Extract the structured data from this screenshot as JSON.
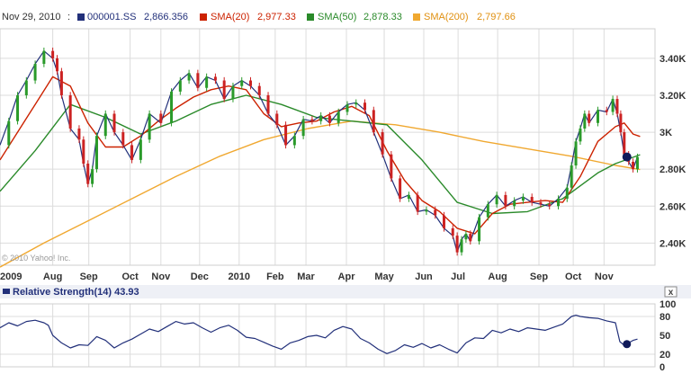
{
  "legend": {
    "date": "Nov 29, 2010",
    "items": [
      {
        "name": "000001.SS",
        "value": "2,866.356",
        "color": "#22307a"
      },
      {
        "name": "SMA(20)",
        "value": "2,977.33",
        "color": "#cc2200"
      },
      {
        "name": "SMA(50)",
        "value": "2,878.33",
        "color": "#2a8a2a"
      },
      {
        "name": "SMA(200)",
        "value": "2,797.66",
        "color": "#f0a830"
      }
    ]
  },
  "watermark": "© 2010 Yahoo! Inc.",
  "rsi_title": "Relative Strength(14) 43.93",
  "close_glyph": "x",
  "chart_data": [
    {
      "type": "line",
      "title": "000001.SS",
      "yticks": [
        2400,
        2600,
        2800,
        3000,
        3200,
        3400
      ],
      "ytick_labels": [
        "2.40K",
        "2.60K",
        "2.80K",
        "3K",
        "3.20K",
        "3.40K"
      ],
      "ylim": [
        2280,
        3560
      ],
      "xlim": [
        0,
        745
      ],
      "month_positions": [
        0,
        60,
        101,
        148,
        183,
        227,
        272,
        313,
        348,
        394,
        437,
        482,
        521,
        566,
        613,
        652,
        687
      ],
      "month_labels": [
        "2009",
        "Aug",
        "Sep",
        "Oct",
        "Nov",
        "Dec",
        "2010",
        "Feb",
        "Mar",
        "Apr",
        "May",
        "Jun",
        "Jul",
        "Aug",
        "Sep",
        "Oct",
        "Nov"
      ],
      "series": [
        {
          "name": "000001.SS",
          "color": "#22307a",
          "x": [
            0,
            10,
            20,
            30,
            40,
            50,
            60,
            65,
            70,
            80,
            90,
            95,
            100,
            105,
            110,
            120,
            130,
            140,
            150,
            160,
            170,
            183,
            195,
            205,
            215,
            225,
            235,
            245,
            255,
            265,
            275,
            285,
            295,
            305,
            315,
            325,
            335,
            345,
            355,
            365,
            375,
            385,
            395,
            405,
            415,
            425,
            435,
            445,
            455,
            465,
            475,
            485,
            495,
            505,
            515,
            520,
            525,
            530,
            535,
            545,
            555,
            565,
            575,
            585,
            595,
            605,
            615,
            625,
            635,
            645,
            650,
            655,
            660,
            665,
            670,
            680,
            690,
            697,
            702,
            706,
            710,
            715,
            720,
            725
          ],
          "values": [
            2930,
            3060,
            3200,
            3280,
            3370,
            3440,
            3400,
            3330,
            3200,
            3020,
            2960,
            2830,
            2720,
            2800,
            2980,
            3100,
            3000,
            2930,
            2850,
            2960,
            3100,
            3050,
            3220,
            3280,
            3320,
            3240,
            3300,
            3280,
            3180,
            3250,
            3280,
            3250,
            3200,
            3100,
            3040,
            2930,
            2980,
            3070,
            3060,
            3090,
            3050,
            3110,
            3150,
            3160,
            3120,
            3000,
            2880,
            2750,
            2640,
            2660,
            2570,
            2580,
            2550,
            2480,
            2440,
            2350,
            2420,
            2450,
            2410,
            2540,
            2610,
            2660,
            2600,
            2630,
            2650,
            2620,
            2610,
            2600,
            2640,
            2700,
            2820,
            2950,
            3020,
            3100,
            3050,
            3120,
            3110,
            3180,
            3100,
            3000,
            2880,
            2840,
            2800,
            2866
          ]
        },
        {
          "name": "SMA(20)",
          "color": "#cc2200",
          "x": [
            0,
            20,
            40,
            60,
            80,
            100,
            120,
            140,
            160,
            180,
            200,
            220,
            240,
            260,
            280,
            300,
            320,
            340,
            360,
            380,
            400,
            420,
            440,
            460,
            480,
            500,
            520,
            540,
            560,
            580,
            600,
            620,
            640,
            660,
            680,
            700,
            710,
            720,
            728
          ],
          "values": [
            2850,
            3000,
            3150,
            3300,
            3250,
            3050,
            2920,
            2920,
            2980,
            3060,
            3130,
            3190,
            3230,
            3250,
            3230,
            3100,
            3030,
            3050,
            3060,
            3110,
            3140,
            3090,
            2900,
            2740,
            2630,
            2570,
            2480,
            2450,
            2560,
            2610,
            2620,
            2630,
            2620,
            2760,
            2950,
            3030,
            3050,
            2990,
            2977
          ]
        },
        {
          "name": "SMA(50)",
          "color": "#2a8a2a",
          "x": [
            0,
            40,
            80,
            120,
            160,
            200,
            240,
            280,
            320,
            360,
            400,
            440,
            480,
            520,
            560,
            600,
            640,
            680,
            700,
            728
          ],
          "values": [
            2680,
            2900,
            3150,
            3080,
            2990,
            3060,
            3150,
            3200,
            3150,
            3080,
            3060,
            3040,
            2850,
            2620,
            2560,
            2570,
            2640,
            2780,
            2830,
            2878
          ]
        },
        {
          "name": "SMA(200)",
          "color": "#f0a830",
          "x": [
            0,
            50,
            100,
            150,
            200,
            250,
            300,
            350,
            400,
            450,
            500,
            550,
            600,
            650,
            700,
            728
          ],
          "values": [
            2270,
            2400,
            2520,
            2640,
            2760,
            2870,
            2960,
            3020,
            3060,
            3040,
            3000,
            2950,
            2910,
            2870,
            2820,
            2798
          ]
        }
      ],
      "marker": {
        "x": 713,
        "value": 2866
      }
    },
    {
      "type": "line",
      "title": "Relative Strength(14)",
      "yticks": [
        0,
        20,
        50,
        80,
        100
      ],
      "ytick_labels": [
        "0",
        "20",
        "50",
        "80",
        "100"
      ],
      "ylim": [
        0,
        100
      ],
      "series": [
        {
          "name": "RSI(14)",
          "color": "#22307a",
          "x": [
            0,
            10,
            20,
            30,
            40,
            50,
            55,
            60,
            70,
            80,
            90,
            100,
            110,
            120,
            130,
            140,
            150,
            160,
            170,
            180,
            190,
            200,
            210,
            220,
            230,
            240,
            250,
            260,
            270,
            280,
            290,
            300,
            310,
            320,
            330,
            340,
            350,
            360,
            370,
            380,
            390,
            400,
            410,
            420,
            430,
            440,
            450,
            460,
            470,
            480,
            490,
            500,
            510,
            520,
            530,
            540,
            550,
            560,
            570,
            580,
            590,
            600,
            610,
            620,
            630,
            640,
            650,
            655,
            660,
            670,
            680,
            690,
            700,
            705,
            710,
            715,
            720,
            725
          ],
          "values": [
            62,
            70,
            65,
            72,
            74,
            70,
            66,
            50,
            38,
            30,
            35,
            34,
            48,
            42,
            30,
            38,
            44,
            52,
            60,
            56,
            64,
            72,
            68,
            70,
            62,
            55,
            62,
            66,
            58,
            47,
            45,
            39,
            33,
            28,
            38,
            42,
            48,
            50,
            46,
            58,
            64,
            60,
            45,
            38,
            28,
            21,
            26,
            35,
            31,
            37,
            30,
            35,
            28,
            22,
            38,
            46,
            45,
            58,
            54,
            60,
            56,
            62,
            60,
            58,
            63,
            68,
            80,
            82,
            80,
            78,
            77,
            73,
            70,
            40,
            34,
            38,
            42,
            44
          ]
        }
      ],
      "marker": {
        "x": 713,
        "value": 36
      }
    }
  ]
}
